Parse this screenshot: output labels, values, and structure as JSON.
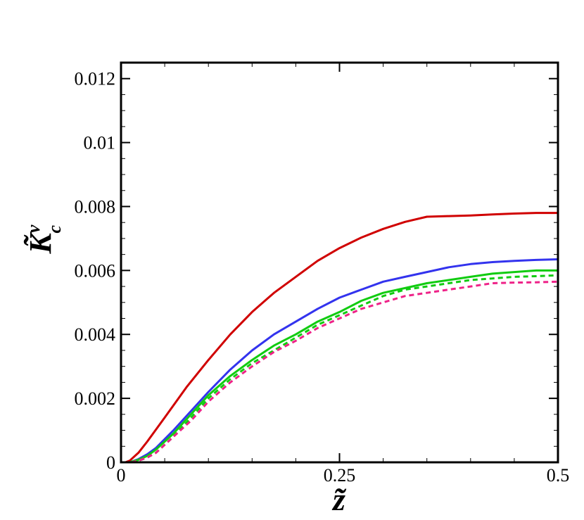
{
  "chart_data": {
    "type": "line",
    "title": "",
    "xlabel": "z̃",
    "ylabel": {
      "main": "K̃",
      "superscript": "v",
      "subscript": "c"
    },
    "xlim": [
      0,
      0.5
    ],
    "ylim": [
      0,
      0.0125
    ],
    "x_ticks": [
      {
        "value": 0,
        "label": "0"
      },
      {
        "value": 0.25,
        "label": "0.25"
      },
      {
        "value": 0.5,
        "label": "0.5"
      }
    ],
    "y_ticks": [
      {
        "value": 0,
        "label": "0"
      },
      {
        "value": 0.002,
        "label": "0.002"
      },
      {
        "value": 0.004,
        "label": "0.004"
      },
      {
        "value": 0.006,
        "label": "0.006"
      },
      {
        "value": 0.008,
        "label": "0.008"
      },
      {
        "value": 0.01,
        "label": "0.01"
      },
      {
        "value": 0.012,
        "label": "0.012"
      }
    ],
    "x_minor_step": 0.05,
    "y_minor_step": 0.0005,
    "grid": false,
    "legend": "none",
    "series": [
      {
        "color": "#d00000",
        "style": "solid",
        "x": [
          0.005,
          0.01,
          0.02,
          0.03,
          0.05,
          0.075,
          0.1,
          0.125,
          0.15,
          0.175,
          0.2,
          0.225,
          0.25,
          0.275,
          0.3,
          0.325,
          0.35,
          0.375,
          0.4,
          0.425,
          0.45,
          0.475,
          0.5
        ],
        "y": [
          0,
          5e-05,
          0.0003,
          0.00065,
          0.0014,
          0.00235,
          0.0032,
          0.004,
          0.0047,
          0.0053,
          0.0058,
          0.0063,
          0.0067,
          0.00703,
          0.0073,
          0.00752,
          0.00768,
          0.0077,
          0.00772,
          0.00775,
          0.00778,
          0.0078,
          0.0078
        ]
      },
      {
        "color": "#3333ee",
        "style": "solid",
        "x": [
          0.01,
          0.02,
          0.03,
          0.04,
          0.06,
          0.08,
          0.1,
          0.125,
          0.15,
          0.175,
          0.2,
          0.225,
          0.25,
          0.275,
          0.3,
          0.325,
          0.35,
          0.375,
          0.4,
          0.425,
          0.45,
          0.475,
          0.5
        ],
        "y": [
          0,
          0.0001,
          0.00025,
          0.00045,
          0.001,
          0.0016,
          0.0022,
          0.0029,
          0.0035,
          0.004,
          0.0044,
          0.0048,
          0.00515,
          0.0054,
          0.00565,
          0.0058,
          0.00595,
          0.0061,
          0.0062,
          0.00626,
          0.0063,
          0.00633,
          0.00635
        ]
      },
      {
        "color": "#11cc11",
        "style": "solid",
        "x": [
          0.01,
          0.02,
          0.03,
          0.04,
          0.06,
          0.08,
          0.1,
          0.125,
          0.15,
          0.175,
          0.2,
          0.225,
          0.25,
          0.275,
          0.3,
          0.325,
          0.35,
          0.375,
          0.4,
          0.425,
          0.45,
          0.475,
          0.5
        ],
        "y": [
          0,
          8e-05,
          0.0002,
          0.0004,
          0.0009,
          0.0015,
          0.0021,
          0.0027,
          0.0032,
          0.00365,
          0.004,
          0.0044,
          0.0047,
          0.00505,
          0.0053,
          0.00545,
          0.0056,
          0.0057,
          0.0058,
          0.0059,
          0.00595,
          0.006,
          0.006
        ]
      },
      {
        "color": "#11cc11",
        "style": "dashed",
        "x": [
          0.012,
          0.02,
          0.03,
          0.04,
          0.06,
          0.08,
          0.1,
          0.125,
          0.15,
          0.175,
          0.2,
          0.225,
          0.25,
          0.275,
          0.3,
          0.325,
          0.35,
          0.375,
          0.4,
          0.425,
          0.45,
          0.475,
          0.5
        ],
        "y": [
          0,
          5e-05,
          0.00015,
          0.0003,
          0.0008,
          0.0014,
          0.002,
          0.0026,
          0.0031,
          0.0035,
          0.0039,
          0.0043,
          0.0046,
          0.0049,
          0.0052,
          0.0054,
          0.0055,
          0.0056,
          0.0057,
          0.00575,
          0.0058,
          0.00582,
          0.00585
        ]
      },
      {
        "color": "#ee2288",
        "style": "dashed",
        "x": [
          0.012,
          0.02,
          0.03,
          0.04,
          0.06,
          0.08,
          0.1,
          0.125,
          0.15,
          0.175,
          0.2,
          0.225,
          0.25,
          0.275,
          0.3,
          0.325,
          0.35,
          0.375,
          0.4,
          0.425,
          0.45,
          0.475,
          0.5
        ],
        "y": [
          0,
          5e-05,
          0.00015,
          0.0003,
          0.0008,
          0.0013,
          0.0019,
          0.0025,
          0.003,
          0.00345,
          0.0038,
          0.0042,
          0.0045,
          0.0048,
          0.005,
          0.0052,
          0.0053,
          0.0054,
          0.0055,
          0.0056,
          0.00562,
          0.00563,
          0.00565
        ]
      }
    ]
  }
}
